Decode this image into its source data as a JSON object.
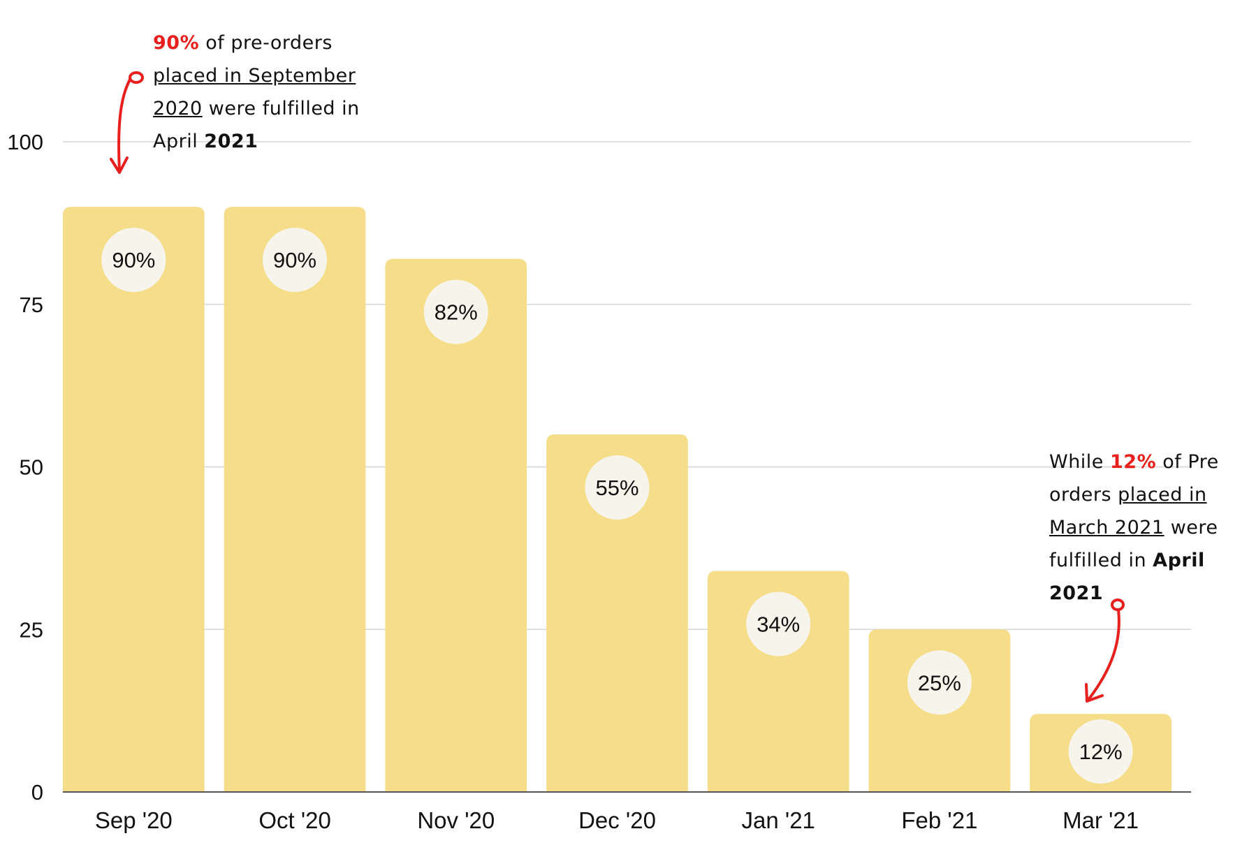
{
  "chart_data": {
    "type": "bar",
    "categories": [
      "Sep '20",
      "Oct '20",
      "Nov '20",
      "Dec '20",
      "Jan '21",
      "Feb '21",
      "Mar '21"
    ],
    "values": [
      90,
      90,
      82,
      55,
      34,
      25,
      12
    ],
    "data_labels": [
      "90%",
      "90%",
      "82%",
      "55%",
      "34%",
      "25%",
      "12%"
    ],
    "ylim": [
      0,
      100
    ],
    "yticks": [
      0,
      25,
      50,
      75,
      100
    ],
    "grid": true,
    "title": "",
    "xlabel": "",
    "ylabel": ""
  },
  "colors": {
    "bar": "#f5dd8a",
    "label_bubble": "#f7f4ec",
    "highlight": "#e8201d",
    "grid": "#d6d6d6"
  },
  "annotations": {
    "first": {
      "pct": "90%",
      "text1": " of pre-orders",
      "text2": "placed in September",
      "text3": "2020",
      "text4": " were fulfilled in",
      "text5": "April ",
      "text6": "2021"
    },
    "last": {
      "text1": "While ",
      "pct": "12%",
      "text2": " of Pre",
      "text3": "orders ",
      "text4": "placed in",
      "text5": "March 2021",
      "text6": " were",
      "text7": "fulfilled in ",
      "text8": "April 2021"
    }
  }
}
